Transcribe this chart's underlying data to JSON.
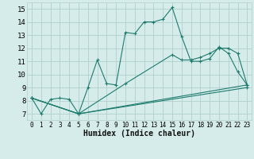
{
  "xlabel": "Humidex (Indice chaleur)",
  "bg_color": "#d5ecea",
  "grid_color": "#b0d0cc",
  "line_color": "#1e7b6e",
  "xlim": [
    -0.5,
    23.5
  ],
  "ylim": [
    6.5,
    15.5
  ],
  "xticks": [
    0,
    1,
    2,
    3,
    4,
    5,
    6,
    7,
    8,
    9,
    10,
    11,
    12,
    13,
    14,
    15,
    16,
    17,
    18,
    19,
    20,
    21,
    22,
    23
  ],
  "yticks": [
    7,
    8,
    9,
    10,
    11,
    12,
    13,
    14,
    15
  ],
  "lines": [
    {
      "x": [
        0,
        1,
        2,
        3,
        4,
        5,
        6,
        7,
        8,
        9,
        10,
        11,
        12,
        13,
        14,
        15,
        16,
        17,
        18,
        19,
        20,
        21,
        22,
        23
      ],
      "y": [
        8.2,
        7.0,
        8.1,
        8.2,
        8.1,
        7.0,
        9.0,
        11.1,
        9.3,
        9.2,
        13.2,
        13.1,
        14.0,
        14.0,
        14.2,
        15.1,
        12.9,
        11.0,
        11.0,
        11.2,
        12.1,
        11.6,
        10.2,
        9.2
      ]
    },
    {
      "x": [
        0,
        5,
        10,
        15,
        16,
        17,
        18,
        19,
        20,
        21,
        22,
        23
      ],
      "y": [
        8.2,
        7.0,
        9.3,
        11.5,
        11.1,
        11.1,
        11.3,
        11.6,
        12.0,
        12.0,
        11.6,
        9.2
      ]
    },
    {
      "x": [
        0,
        5,
        23
      ],
      "y": [
        8.2,
        7.0,
        9.2
      ]
    },
    {
      "x": [
        0,
        5,
        23
      ],
      "y": [
        8.2,
        7.0,
        9.0
      ]
    }
  ]
}
